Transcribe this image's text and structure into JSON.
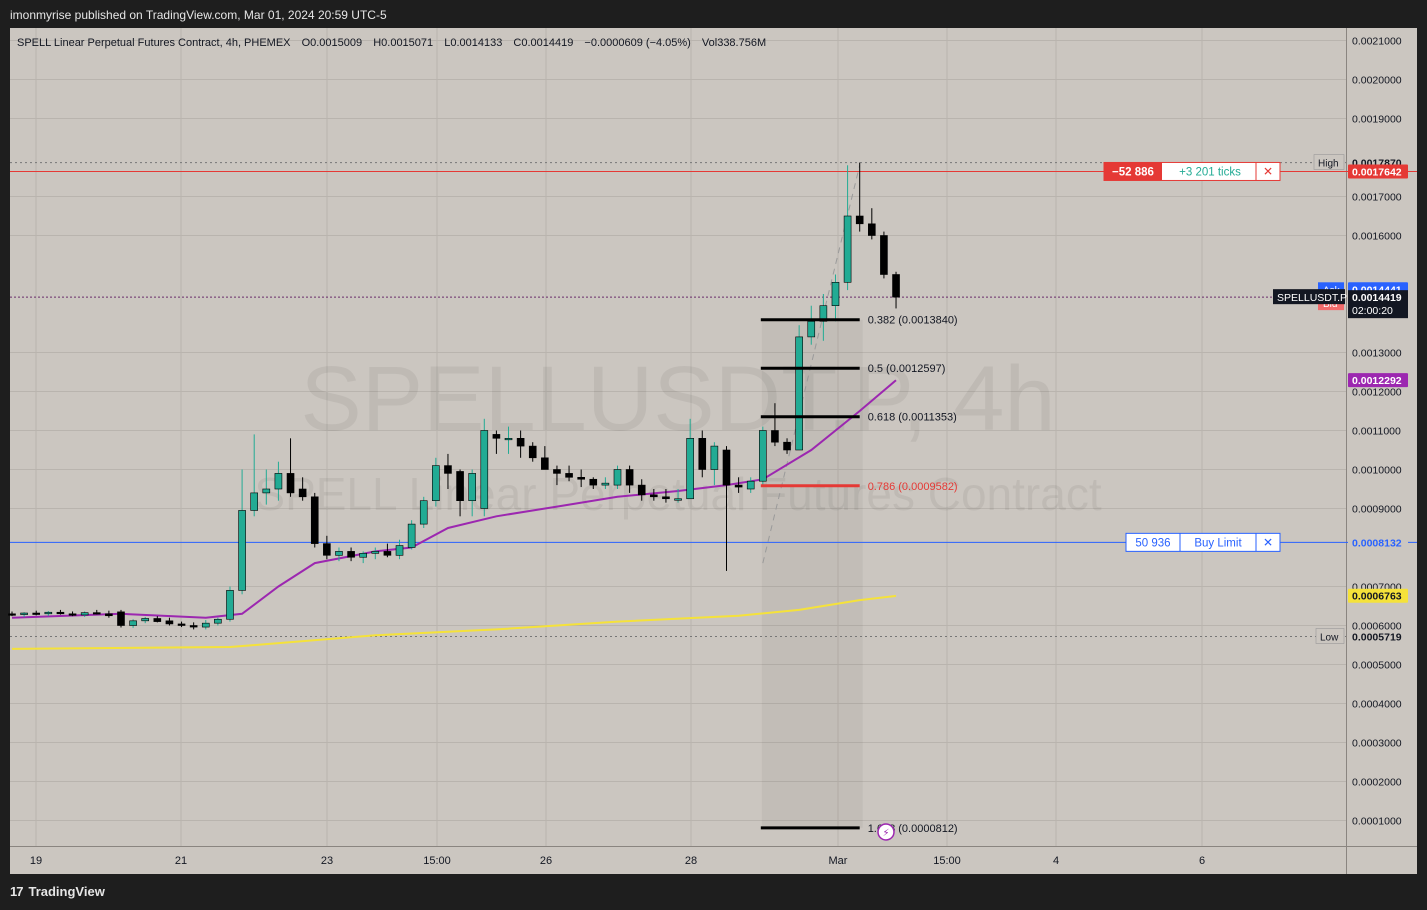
{
  "header": {
    "published": "imonmyrise published on TradingView.com, Mar 01, 2024 20:59 UTC-5"
  },
  "footer": {
    "brand": "TradingView"
  },
  "symbol_line": {
    "title": "SPELL Linear Perpetual Futures Contract, 4h, PHEMEX",
    "open": "O0.0015009",
    "high": "H0.0015071",
    "low": "L0.0014133",
    "close": "C0.0014419",
    "change": "−0.0000609 (−4.05%)",
    "volume": "Vol338.756M"
  },
  "watermark": {
    "line1": "SPELLUSDT.P, 4h",
    "line2": "SPELL Linear Perpetual Futures Contract"
  },
  "colors": {
    "background": "#cbc6c0",
    "up": "#22ab94",
    "down": "#000000",
    "ma_fast": "#9c27b0",
    "ma_slow": "#f5e23a",
    "sell_line": "#e53935",
    "buy_line": "#2962ff"
  },
  "chart_data": {
    "type": "candlestick",
    "ylim": [
      5e-05,
      0.00215
    ],
    "y_ticks": [
      "0.0021000",
      "0.0020000",
      "0.0019000",
      "0.0017000",
      "0.0016000",
      "0.0013000",
      "0.0012000",
      "0.0011000",
      "0.0010000",
      "0.0009000",
      "0.0007000",
      "0.0006000",
      "0.0005000",
      "0.0004000",
      "0.0003000",
      "0.0002000",
      "0.0001000"
    ],
    "x_ticks": [
      "19",
      "21",
      "23",
      "15:00",
      "26",
      "28",
      "Mar",
      "15:00",
      "4",
      "6"
    ],
    "candles": [
      {
        "o": 0.00063,
        "h": 0.000636,
        "l": 0.000624,
        "c": 0.000628
      },
      {
        "o": 0.000628,
        "h": 0.000634,
        "l": 0.000622,
        "c": 0.000632
      },
      {
        "o": 0.000632,
        "h": 0.000638,
        "l": 0.000626,
        "c": 0.00063
      },
      {
        "o": 0.00063,
        "h": 0.000637,
        "l": 0.000625,
        "c": 0.000634
      },
      {
        "o": 0.000634,
        "h": 0.00064,
        "l": 0.000628,
        "c": 0.00063
      },
      {
        "o": 0.00063,
        "h": 0.000636,
        "l": 0.000624,
        "c": 0.000627
      },
      {
        "o": 0.000627,
        "h": 0.000636,
        "l": 0.000622,
        "c": 0.000633
      },
      {
        "o": 0.000633,
        "h": 0.00064,
        "l": 0.000628,
        "c": 0.00063
      },
      {
        "o": 0.00063,
        "h": 0.000638,
        "l": 0.00062,
        "c": 0.000625
      },
      {
        "o": 0.000635,
        "h": 0.00064,
        "l": 0.000595,
        "c": 0.0006
      },
      {
        "o": 0.0006,
        "h": 0.000616,
        "l": 0.000594,
        "c": 0.000612
      },
      {
        "o": 0.000612,
        "h": 0.000622,
        "l": 0.000606,
        "c": 0.000618
      },
      {
        "o": 0.000618,
        "h": 0.000624,
        "l": 0.000608,
        "c": 0.00061
      },
      {
        "o": 0.000612,
        "h": 0.00062,
        "l": 0.0006,
        "c": 0.000604
      },
      {
        "o": 0.000604,
        "h": 0.00061,
        "l": 0.000596,
        "c": 0.0006
      },
      {
        "o": 0.0006,
        "h": 0.000608,
        "l": 0.00059,
        "c": 0.000596
      },
      {
        "o": 0.000596,
        "h": 0.000614,
        "l": 0.00059,
        "c": 0.000606
      },
      {
        "o": 0.000606,
        "h": 0.00062,
        "l": 0.0006,
        "c": 0.000616
      },
      {
        "o": 0.000616,
        "h": 0.0007,
        "l": 0.00061,
        "c": 0.00069
      },
      {
        "o": 0.00069,
        "h": 0.001,
        "l": 0.00068,
        "c": 0.000895
      },
      {
        "o": 0.000895,
        "h": 0.00109,
        "l": 0.00088,
        "c": 0.00094
      },
      {
        "o": 0.00094,
        "h": 0.001,
        "l": 0.00091,
        "c": 0.00095
      },
      {
        "o": 0.00095,
        "h": 0.00102,
        "l": 0.00092,
        "c": 0.00099
      },
      {
        "o": 0.00099,
        "h": 0.00108,
        "l": 0.00093,
        "c": 0.00094
      },
      {
        "o": 0.00095,
        "h": 0.00098,
        "l": 0.00092,
        "c": 0.00093
      },
      {
        "o": 0.00093,
        "h": 0.00094,
        "l": 0.0008,
        "c": 0.00081
      },
      {
        "o": 0.00081,
        "h": 0.00083,
        "l": 0.00077,
        "c": 0.00078
      },
      {
        "o": 0.00078,
        "h": 0.0008,
        "l": 0.000765,
        "c": 0.00079
      },
      {
        "o": 0.00079,
        "h": 0.0008,
        "l": 0.000765,
        "c": 0.000775
      },
      {
        "o": 0.000775,
        "h": 0.00079,
        "l": 0.00076,
        "c": 0.000785
      },
      {
        "o": 0.000785,
        "h": 0.0008,
        "l": 0.00077,
        "c": 0.00079
      },
      {
        "o": 0.00079,
        "h": 0.00081,
        "l": 0.000775,
        "c": 0.00078
      },
      {
        "o": 0.00078,
        "h": 0.00082,
        "l": 0.00077,
        "c": 0.000805
      },
      {
        "o": 0.0008,
        "h": 0.00087,
        "l": 0.000795,
        "c": 0.00086
      },
      {
        "o": 0.00086,
        "h": 0.00093,
        "l": 0.00085,
        "c": 0.00092
      },
      {
        "o": 0.00092,
        "h": 0.00103,
        "l": 0.000905,
        "c": 0.00101
      },
      {
        "o": 0.00101,
        "h": 0.00104,
        "l": 0.00095,
        "c": 0.00099
      },
      {
        "o": 0.000995,
        "h": 0.001,
        "l": 0.00088,
        "c": 0.00092
      },
      {
        "o": 0.00092,
        "h": 0.001,
        "l": 0.00088,
        "c": 0.00099
      },
      {
        "o": 0.0009,
        "h": 0.00113,
        "l": 0.00088,
        "c": 0.0011
      },
      {
        "o": 0.00109,
        "h": 0.0011,
        "l": 0.00104,
        "c": 0.00108
      },
      {
        "o": 0.00108,
        "h": 0.00111,
        "l": 0.00104,
        "c": 0.00108
      },
      {
        "o": 0.00108,
        "h": 0.0011,
        "l": 0.00103,
        "c": 0.00106
      },
      {
        "o": 0.00106,
        "h": 0.00107,
        "l": 0.00102,
        "c": 0.00103
      },
      {
        "o": 0.00103,
        "h": 0.00106,
        "l": 0.001,
        "c": 0.001
      },
      {
        "o": 0.001,
        "h": 0.00101,
        "l": 0.00096,
        "c": 0.00099
      },
      {
        "o": 0.00099,
        "h": 0.00101,
        "l": 0.00097,
        "c": 0.00098
      },
      {
        "o": 0.00098,
        "h": 0.001,
        "l": 0.000955,
        "c": 0.000975
      },
      {
        "o": 0.000975,
        "h": 0.00098,
        "l": 0.00095,
        "c": 0.00096
      },
      {
        "o": 0.00096,
        "h": 0.00098,
        "l": 0.00095,
        "c": 0.000965
      },
      {
        "o": 0.00096,
        "h": 0.00101,
        "l": 0.00095,
        "c": 0.001
      },
      {
        "o": 0.001,
        "h": 0.00101,
        "l": 0.00094,
        "c": 0.00096
      },
      {
        "o": 0.00096,
        "h": 0.000975,
        "l": 0.00092,
        "c": 0.000935
      },
      {
        "o": 0.000935,
        "h": 0.00095,
        "l": 0.00092,
        "c": 0.00093
      },
      {
        "o": 0.00093,
        "h": 0.00095,
        "l": 0.000915,
        "c": 0.000925
      },
      {
        "o": 0.000925,
        "h": 0.00095,
        "l": 0.000915,
        "c": 0.000925
      },
      {
        "o": 0.000925,
        "h": 0.00113,
        "l": 0.000925,
        "c": 0.00108
      },
      {
        "o": 0.00108,
        "h": 0.0011,
        "l": 0.00098,
        "c": 0.001
      },
      {
        "o": 0.001,
        "h": 0.00107,
        "l": 0.00096,
        "c": 0.00106
      },
      {
        "o": 0.00105,
        "h": 0.00106,
        "l": 0.00074,
        "c": 0.00096
      },
      {
        "o": 0.00096,
        "h": 0.00098,
        "l": 0.00094,
        "c": 0.000955
      },
      {
        "o": 0.00095,
        "h": 0.00098,
        "l": 0.00094,
        "c": 0.00097
      },
      {
        "o": 0.00097,
        "h": 0.00111,
        "l": 0.00096,
        "c": 0.0011
      },
      {
        "o": 0.0011,
        "h": 0.00117,
        "l": 0.00106,
        "c": 0.00107
      },
      {
        "o": 0.00107,
        "h": 0.00108,
        "l": 0.00104,
        "c": 0.00105
      },
      {
        "o": 0.00105,
        "h": 0.00137,
        "l": 0.00105,
        "c": 0.00134
      },
      {
        "o": 0.00134,
        "h": 0.00142,
        "l": 0.00132,
        "c": 0.00138
      },
      {
        "o": 0.00138,
        "h": 0.00145,
        "l": 0.00133,
        "c": 0.00142
      },
      {
        "o": 0.00142,
        "h": 0.0015,
        "l": 0.00138,
        "c": 0.00148
      },
      {
        "o": 0.00148,
        "h": 0.00178,
        "l": 0.00146,
        "c": 0.00165
      },
      {
        "o": 0.00165,
        "h": 0.001787,
        "l": 0.00161,
        "c": 0.00163
      },
      {
        "o": 0.00163,
        "h": 0.00167,
        "l": 0.00159,
        "c": 0.0016
      },
      {
        "o": 0.0016,
        "h": 0.00161,
        "l": 0.00149,
        "c": 0.0015
      },
      {
        "o": 0.0015,
        "h": 0.001507,
        "l": 0.001413,
        "c": 0.001442
      }
    ],
    "ma_fast_anchor": [
      [
        0,
        0.00062
      ],
      [
        9,
        0.00063
      ],
      [
        16,
        0.00062
      ],
      [
        19,
        0.00063
      ],
      [
        22,
        0.0007
      ],
      [
        25,
        0.00076
      ],
      [
        30,
        0.00079
      ],
      [
        33,
        0.0008
      ],
      [
        36,
        0.00085
      ],
      [
        40,
        0.00088
      ],
      [
        45,
        0.000905
      ],
      [
        50,
        0.00093
      ],
      [
        55,
        0.000945
      ],
      [
        59,
        0.00096
      ],
      [
        62,
        0.000975
      ],
      [
        66,
        0.00105
      ],
      [
        70,
        0.00115
      ],
      [
        73,
        0.001229
      ]
    ],
    "ma_slow_anchor": [
      [
        0,
        0.00054
      ],
      [
        18,
        0.000545
      ],
      [
        30,
        0.000575
      ],
      [
        40,
        0.00059
      ],
      [
        50,
        0.00061
      ],
      [
        60,
        0.000625
      ],
      [
        65,
        0.00064
      ],
      [
        70,
        0.000665
      ],
      [
        73,
        0.000676
      ]
    ],
    "fib_levels": [
      {
        "label": "0.382 (0.0013840)",
        "value": 0.001384,
        "color": "#000000"
      },
      {
        "label": "0.5 (0.0012597)",
        "value": 0.0012597,
        "color": "#000000"
      },
      {
        "label": "0.618 (0.0011353)",
        "value": 0.0011353,
        "color": "#000000"
      },
      {
        "label": "0.786 (0.0009582)",
        "value": 0.0009582,
        "color": "#e53935"
      },
      {
        "label": "1.618 (0.0000812)",
        "value": 8.12e-05,
        "color": "#000000"
      }
    ],
    "fib_range_start_index": 62,
    "fib_range_end_index": 70,
    "high_line": {
      "value": 0.001787,
      "label": "High",
      "price": "0.0017870"
    },
    "low_line": {
      "value": 0.0005719,
      "label": "Low",
      "price": "0.0005719"
    },
    "sell_order": {
      "value": 0.0017642,
      "qty": "−52 886",
      "ticks": "+3 201 ticks",
      "price": "0.0017642"
    },
    "buy_order": {
      "value": 0.0008132,
      "qty": "50 936",
      "type": "Buy Limit",
      "price": "0.0008132"
    },
    "last_price": {
      "value": 0.0014419,
      "symbol": "SPELLUSDT.P",
      "price": "0.0014419",
      "countdown": "02:00:20"
    },
    "ask": {
      "label": "Ask",
      "price": "0.0014441",
      "value": 0.0014441
    },
    "bid": {
      "label": "Bid",
      "price": "0.0014420",
      "value": 0.001442
    },
    "ma_fast_tag": {
      "price": "0.0012292",
      "value": 0.0012292
    },
    "ma_slow_tag": {
      "price": "0.0006763",
      "value": 0.0006763
    }
  }
}
